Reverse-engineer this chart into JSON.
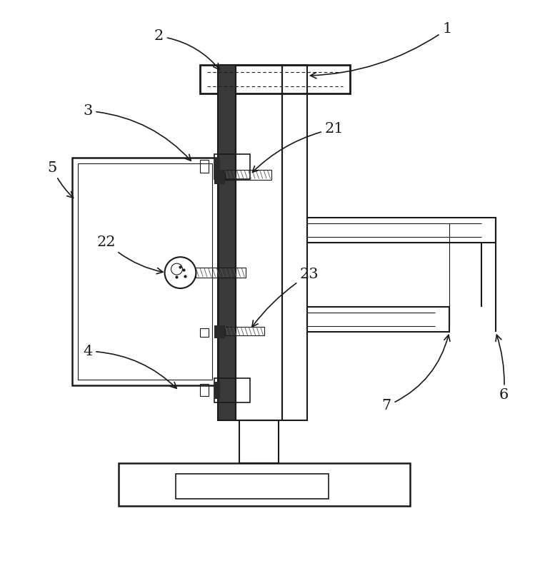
{
  "bg_color": "#ffffff",
  "line_color": "#1a1a1a",
  "fig_width": 7.77,
  "fig_height": 8.24
}
